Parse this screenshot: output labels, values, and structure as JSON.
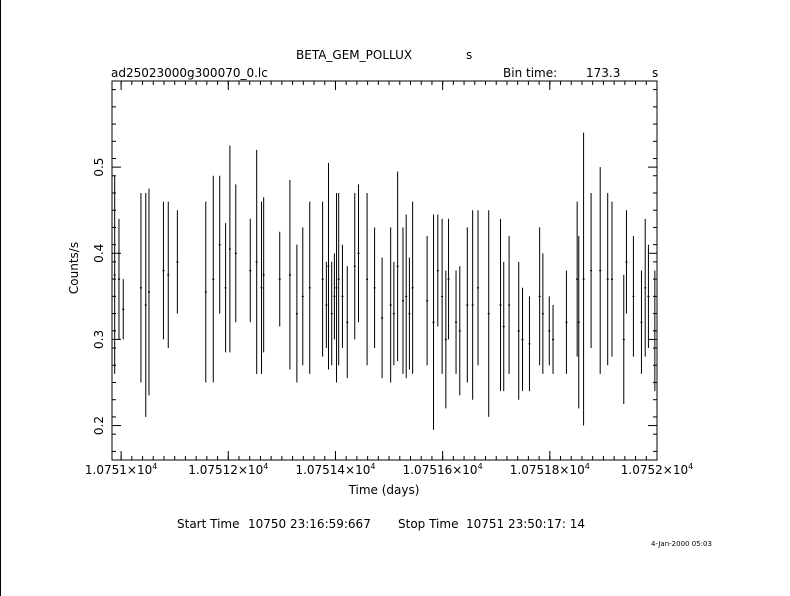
{
  "header": {
    "object": "BETA_GEM_POLLUX",
    "object_suffix": "s",
    "filename": "ad25023000g300070_0.lc",
    "bin_label": "Bin time:",
    "bin_value": "173.3",
    "bin_unit": "s"
  },
  "footer": {
    "start_label": "Start Time",
    "start_value": "10750 23:16:59:667",
    "stop_label": "Stop Time",
    "stop_value": "10751 23:50:17: 14",
    "stamp": "4-Jan-2000 05:03"
  },
  "chart_data": {
    "type": "scatter",
    "xlabel": "Time (days)",
    "ylabel": "Counts/s",
    "xlim": [
      10750.983,
      10752.0
    ],
    "ylim": [
      0.16,
      0.6
    ],
    "x_ticks": [
      {
        "value": 10751.0,
        "mantissa": "1.0751",
        "exp": "4"
      },
      {
        "value": 10751.2,
        "mantissa": "1.07512",
        "exp": "4"
      },
      {
        "value": 10751.4,
        "mantissa": "1.07514",
        "exp": "4"
      },
      {
        "value": 10751.6,
        "mantissa": "1.07516",
        "exp": "4"
      },
      {
        "value": 10751.8,
        "mantissa": "1.07518",
        "exp": "4"
      },
      {
        "value": 10752.0,
        "mantissa": "1.0752",
        "exp": "4"
      }
    ],
    "y_ticks": [
      0.2,
      0.3,
      0.4,
      0.5
    ],
    "points": [
      [
        10750.988,
        0.375,
        0.115
      ],
      [
        10750.996,
        0.37,
        0.07
      ],
      [
        10751.004,
        0.335,
        0.035
      ],
      [
        10751.037,
        0.36,
        0.11
      ],
      [
        10751.046,
        0.34,
        0.13
      ],
      [
        10751.052,
        0.355,
        0.12
      ],
      [
        10751.079,
        0.38,
        0.08
      ],
      [
        10751.088,
        0.375,
        0.085
      ],
      [
        10751.105,
        0.39,
        0.06
      ],
      [
        10751.158,
        0.355,
        0.105
      ],
      [
        10751.172,
        0.37,
        0.12
      ],
      [
        10751.184,
        0.41,
        0.08
      ],
      [
        10751.195,
        0.36,
        0.075
      ],
      [
        10751.203,
        0.405,
        0.12
      ],
      [
        10751.214,
        0.4,
        0.08
      ],
      [
        10751.241,
        0.38,
        0.06
      ],
      [
        10751.253,
        0.39,
        0.13
      ],
      [
        10751.262,
        0.36,
        0.1
      ],
      [
        10751.266,
        0.375,
        0.09
      ],
      [
        10751.296,
        0.37,
        0.055
      ],
      [
        10751.315,
        0.375,
        0.11
      ],
      [
        10751.328,
        0.33,
        0.08
      ],
      [
        10751.339,
        0.35,
        0.08
      ],
      [
        10751.352,
        0.36,
        0.1
      ],
      [
        10751.376,
        0.37,
        0.09
      ],
      [
        10751.383,
        0.34,
        0.05
      ],
      [
        10751.387,
        0.385,
        0.12
      ],
      [
        10751.393,
        0.33,
        0.06
      ],
      [
        10751.398,
        0.35,
        0.05
      ],
      [
        10751.402,
        0.36,
        0.11
      ],
      [
        10751.406,
        0.37,
        0.1
      ],
      [
        10751.413,
        0.35,
        0.06
      ],
      [
        10751.422,
        0.32,
        0.065
      ],
      [
        10751.436,
        0.385,
        0.085
      ],
      [
        10751.443,
        0.4,
        0.08
      ],
      [
        10751.459,
        0.37,
        0.1
      ],
      [
        10751.473,
        0.36,
        0.07
      ],
      [
        10751.487,
        0.325,
        0.07
      ],
      [
        10751.503,
        0.34,
        0.09
      ],
      [
        10751.509,
        0.33,
        0.06
      ],
      [
        10751.516,
        0.385,
        0.11
      ],
      [
        10751.526,
        0.345,
        0.085
      ],
      [
        10751.532,
        0.35,
        0.095
      ],
      [
        10751.538,
        0.33,
        0.065
      ],
      [
        10751.544,
        0.36,
        0.1
      ],
      [
        10751.571,
        0.345,
        0.075
      ],
      [
        10751.583,
        0.32,
        0.125
      ],
      [
        10751.591,
        0.38,
        0.065
      ],
      [
        10751.599,
        0.35,
        0.09
      ],
      [
        10751.606,
        0.3,
        0.08
      ],
      [
        10751.611,
        0.37,
        0.07
      ],
      [
        10751.625,
        0.32,
        0.06
      ],
      [
        10751.632,
        0.31,
        0.075
      ],
      [
        10751.646,
        0.34,
        0.09
      ],
      [
        10751.656,
        0.34,
        0.11
      ],
      [
        10751.666,
        0.36,
        0.09
      ],
      [
        10751.686,
        0.33,
        0.12
      ],
      [
        10751.708,
        0.34,
        0.1
      ],
      [
        10751.714,
        0.315,
        0.075
      ],
      [
        10751.724,
        0.34,
        0.08
      ],
      [
        10751.742,
        0.31,
        0.08
      ],
      [
        10751.749,
        0.3,
        0.06
      ],
      [
        10751.762,
        0.295,
        0.055
      ],
      [
        10751.781,
        0.35,
        0.08
      ],
      [
        10751.787,
        0.33,
        0.07
      ],
      [
        10751.799,
        0.31,
        0.04
      ],
      [
        10751.806,
        0.3,
        0.04
      ],
      [
        10751.831,
        0.32,
        0.06
      ],
      [
        10751.851,
        0.37,
        0.09
      ],
      [
        10751.854,
        0.32,
        0.1
      ],
      [
        10751.863,
        0.37,
        0.17
      ],
      [
        10751.877,
        0.38,
        0.09
      ],
      [
        10751.894,
        0.38,
        0.12
      ],
      [
        10751.908,
        0.37,
        0.1
      ],
      [
        10751.916,
        0.37,
        0.09
      ],
      [
        10751.938,
        0.3,
        0.075
      ],
      [
        10751.943,
        0.39,
        0.06
      ],
      [
        10751.956,
        0.35,
        0.07
      ],
      [
        10751.971,
        0.32,
        0.06
      ],
      [
        10751.978,
        0.36,
        0.08
      ],
      [
        10751.984,
        0.35,
        0.06
      ],
      [
        10751.996,
        0.31,
        0.07
      ]
    ]
  }
}
